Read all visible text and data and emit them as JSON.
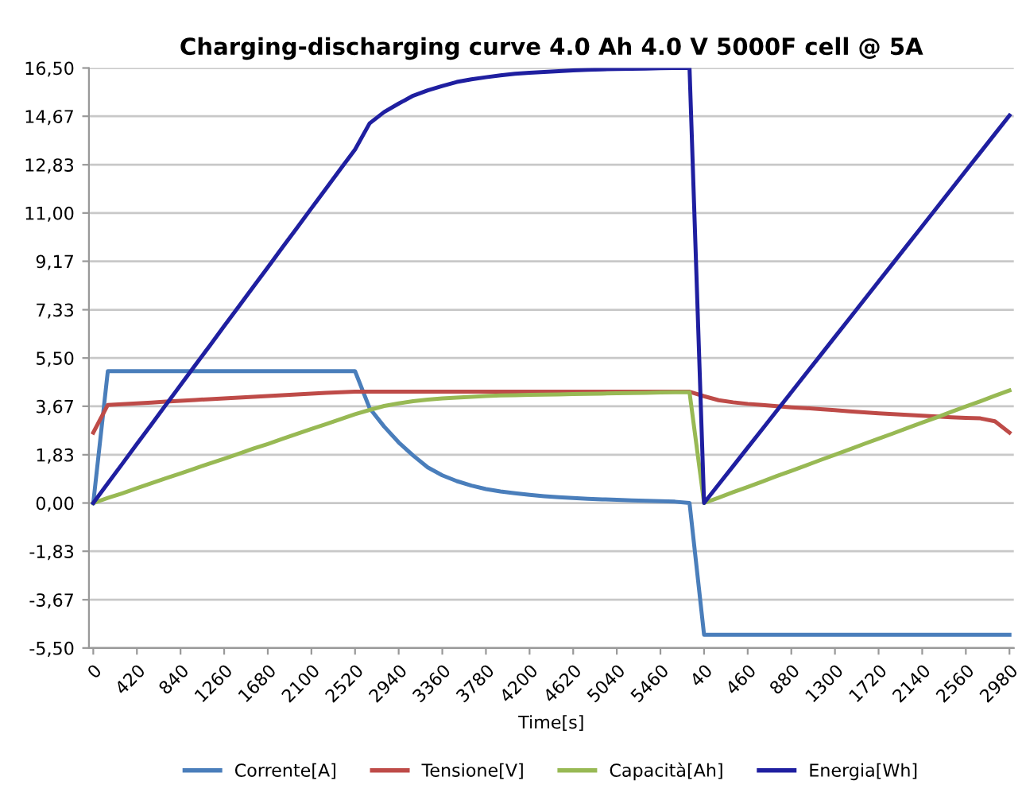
{
  "chart_data": {
    "type": "line",
    "title": "Charging-discharging curve 4.0 Ah 4.0 V 5000F cell @ 5A",
    "xlabel": "Time[s]",
    "categories": [
      "0",
      null,
      null,
      "420",
      null,
      null,
      "840",
      null,
      null,
      "1260",
      null,
      null,
      "1680",
      null,
      null,
      "2100",
      null,
      null,
      "2520",
      null,
      null,
      "2940",
      null,
      null,
      "3360",
      null,
      null,
      "3780",
      null,
      null,
      "4200",
      null,
      null,
      "4620",
      null,
      null,
      "5040",
      null,
      null,
      "5460",
      null,
      null,
      "40",
      null,
      null,
      "460",
      null,
      null,
      "880",
      null,
      null,
      "1300",
      null,
      null,
      "1720",
      null,
      null,
      "2140",
      null,
      null,
      "2560",
      null,
      null,
      "2980"
    ],
    "series": [
      {
        "name": "Corrente[A]",
        "color": "#4a7ebb",
        "values": [
          0,
          5.0,
          5.0,
          5.0,
          5.0,
          5.0,
          5.0,
          5.0,
          5.0,
          5.0,
          5.0,
          5.0,
          5.0,
          5.0,
          5.0,
          5.0,
          5.0,
          5.0,
          5.0,
          3.6,
          2.9,
          2.3,
          1.8,
          1.35,
          1.05,
          0.83,
          0.66,
          0.53,
          0.44,
          0.37,
          0.31,
          0.26,
          0.22,
          0.19,
          0.16,
          0.14,
          0.12,
          0.1,
          0.08,
          0.07,
          0.05,
          0.0,
          -5.0,
          -5.0,
          -5.0,
          -5.0,
          -5.0,
          -5.0,
          -5.0,
          -5.0,
          -5.0,
          -5.0,
          -5.0,
          -5.0,
          -5.0,
          -5.0,
          -5.0,
          -5.0,
          -5.0,
          -5.0,
          -5.0,
          -5.0,
          -5.0,
          -5.0
        ]
      },
      {
        "name": "Tensione[V]",
        "color": "#be4b48",
        "values": [
          2.67,
          3.72,
          3.75,
          3.78,
          3.81,
          3.85,
          3.88,
          3.91,
          3.94,
          3.97,
          4.0,
          4.03,
          4.06,
          4.09,
          4.12,
          4.15,
          4.18,
          4.2,
          4.22,
          4.22,
          4.22,
          4.22,
          4.22,
          4.22,
          4.22,
          4.22,
          4.22,
          4.22,
          4.22,
          4.22,
          4.22,
          4.22,
          4.22,
          4.22,
          4.22,
          4.22,
          4.22,
          4.22,
          4.22,
          4.22,
          4.22,
          4.22,
          4.05,
          3.9,
          3.82,
          3.76,
          3.72,
          3.67,
          3.63,
          3.6,
          3.56,
          3.52,
          3.48,
          3.44,
          3.4,
          3.37,
          3.34,
          3.31,
          3.28,
          3.25,
          3.23,
          3.21,
          3.1,
          2.67
        ]
      },
      {
        "name": "Capacità[Ah]",
        "color": "#98b954",
        "values": [
          0,
          0.19,
          0.37,
          0.56,
          0.75,
          0.94,
          1.12,
          1.31,
          1.5,
          1.68,
          1.87,
          2.06,
          2.24,
          2.43,
          2.62,
          2.81,
          2.99,
          3.18,
          3.37,
          3.53,
          3.68,
          3.78,
          3.86,
          3.92,
          3.97,
          4.0,
          4.03,
          4.06,
          4.08,
          4.09,
          4.1,
          4.11,
          4.12,
          4.13,
          4.14,
          4.15,
          4.16,
          4.17,
          4.18,
          4.19,
          4.2,
          4.2,
          0,
          0.2,
          0.41,
          0.61,
          0.81,
          1.02,
          1.22,
          1.42,
          1.63,
          1.83,
          2.03,
          2.24,
          2.44,
          2.64,
          2.85,
          3.05,
          3.25,
          3.46,
          3.66,
          3.86,
          4.07,
          4.27
        ]
      },
      {
        "name": "Energia[Wh]",
        "color": "#1f1fa0",
        "values": [
          0,
          0.75,
          1.49,
          2.24,
          2.98,
          3.73,
          4.47,
          5.22,
          5.96,
          6.71,
          7.45,
          8.2,
          8.94,
          9.69,
          10.43,
          11.18,
          11.92,
          12.67,
          13.41,
          14.4,
          14.83,
          15.15,
          15.45,
          15.65,
          15.82,
          15.97,
          16.07,
          16.15,
          16.22,
          16.28,
          16.32,
          16.35,
          16.38,
          16.41,
          16.43,
          16.45,
          16.46,
          16.47,
          16.48,
          16.49,
          16.5,
          16.5,
          0,
          0.7,
          1.4,
          2.1,
          2.8,
          3.5,
          4.2,
          4.9,
          5.6,
          6.3,
          7.0,
          7.7,
          8.4,
          9.1,
          9.8,
          10.5,
          11.2,
          11.9,
          12.6,
          13.3,
          14.0,
          14.7
        ]
      }
    ],
    "ylim": [
      -5.5,
      16.5
    ],
    "yticks": [
      {
        "value": 16.5,
        "label": "16,50"
      },
      {
        "value": 14.67,
        "label": "14,67"
      },
      {
        "value": 12.83,
        "label": "12,83"
      },
      {
        "value": 11.0,
        "label": "11,00"
      },
      {
        "value": 9.17,
        "label": "9,17"
      },
      {
        "value": 7.33,
        "label": "7,33"
      },
      {
        "value": 5.5,
        "label": "5,50"
      },
      {
        "value": 3.67,
        "label": "3,67"
      },
      {
        "value": 1.83,
        "label": "1,83"
      },
      {
        "value": 0,
        "label": "0,00"
      },
      {
        "value": -1.83,
        "label": "-1,83"
      },
      {
        "value": -3.67,
        "label": "-3,67"
      },
      {
        "value": -5.5,
        "label": "-5,50"
      }
    ],
    "grid": "y",
    "legend": "bottom",
    "marker": "none",
    "line_style": "solid"
  }
}
